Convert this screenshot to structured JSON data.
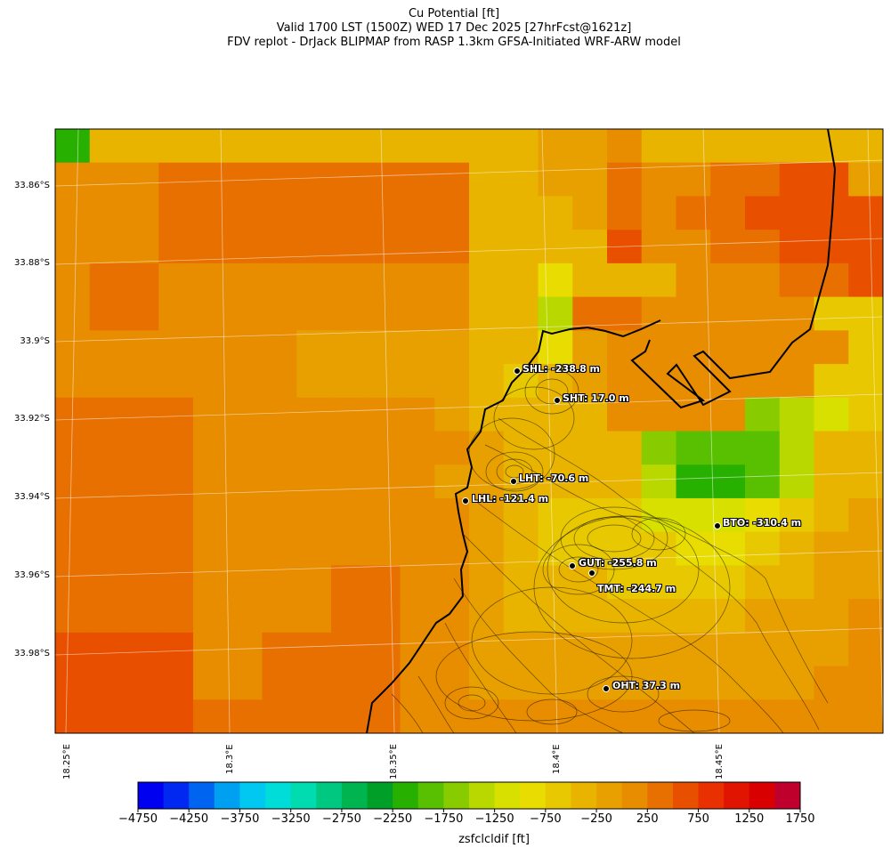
{
  "title": {
    "line1": "Cu Potential [ft]",
    "line2": "Valid 1700 LST (1500Z) WED 17 Dec 2025 [27hrFcst@1621z]",
    "line3": "FDV replot - DrJack BLIPMAP from RASP 1.3km GFSA-Initiated WRF-ARW model"
  },
  "lat_labels": [
    "33.86°S",
    "33.88°S",
    "33.9°S",
    "33.92°S",
    "33.94°S",
    "33.96°S",
    "33.98°S"
  ],
  "lon_labels": [
    "18.25°E",
    "18.3°E",
    "18.35°E",
    "18.4°E",
    "18.45°E"
  ],
  "stations": [
    {
      "name": "SHL",
      "label": "SHL: -238.8 m"
    },
    {
      "name": "SHT",
      "label": "SHT: 17.0 m"
    },
    {
      "name": "LHT",
      "label": "LHT: -70.6 m"
    },
    {
      "name": "LHL",
      "label": "LHL: -121.4 m"
    },
    {
      "name": "BTO",
      "label": "BTO: -310.4 m"
    },
    {
      "name": "GUT",
      "label": "GUT: -255.8 m"
    },
    {
      "name": "TMT",
      "label": "TMT: -244.7 m"
    },
    {
      "name": "OHT",
      "label": "OHT: 37.3 m"
    }
  ],
  "colorbar": {
    "label": "zsfclcldif [ft]",
    "ticks": [
      "−4750",
      "−4250",
      "−3750",
      "−3250",
      "−2750",
      "−2250",
      "−1750",
      "−1250",
      "−750",
      "−250",
      "250",
      "750",
      "1250",
      "1750"
    ],
    "colors": [
      "#0000f0",
      "#0028f0",
      "#0064f0",
      "#00a0f0",
      "#00c8f0",
      "#00dcd8",
      "#00dcb0",
      "#00c880",
      "#00b450",
      "#00a028",
      "#28b000",
      "#58c000",
      "#88cc00",
      "#b8d800",
      "#d8e000",
      "#e8dc00",
      "#e8c800",
      "#e8b400",
      "#e8a000",
      "#e88c00",
      "#e87000",
      "#e85000",
      "#e83000",
      "#e01400",
      "#d80000",
      "#c0002c"
    ]
  },
  "field_grid": [
    [
      10,
      17,
      17,
      17,
      17,
      17,
      17,
      17,
      17,
      17,
      17,
      17,
      17,
      17,
      18,
      18,
      19,
      17,
      17,
      17,
      17,
      17,
      17,
      17
    ],
    [
      19,
      19,
      19,
      20,
      20,
      20,
      20,
      20,
      20,
      20,
      20,
      20,
      17,
      17,
      18,
      18,
      20,
      19,
      19,
      20,
      20,
      21,
      21,
      18
    ],
    [
      19,
      19,
      19,
      20,
      20,
      20,
      20,
      20,
      20,
      20,
      20,
      20,
      17,
      17,
      17,
      18,
      20,
      19,
      20,
      20,
      21,
      21,
      21,
      21
    ],
    [
      19,
      19,
      19,
      20,
      20,
      20,
      20,
      20,
      20,
      20,
      20,
      20,
      17,
      17,
      17,
      17,
      21,
      19,
      19,
      20,
      20,
      21,
      21,
      21
    ],
    [
      19,
      20,
      20,
      19,
      19,
      19,
      19,
      19,
      19,
      19,
      19,
      19,
      17,
      17,
      15,
      17,
      17,
      17,
      19,
      19,
      19,
      20,
      20,
      21
    ],
    [
      19,
      20,
      20,
      19,
      19,
      19,
      19,
      19,
      19,
      19,
      19,
      19,
      17,
      17,
      13,
      20,
      20,
      19,
      19,
      19,
      19,
      19,
      16,
      16
    ],
    [
      19,
      19,
      19,
      19,
      19,
      19,
      19,
      18,
      18,
      18,
      18,
      18,
      17,
      17,
      15,
      18,
      19,
      19,
      19,
      19,
      19,
      19,
      19,
      16
    ],
    [
      19,
      19,
      19,
      19,
      19,
      19,
      19,
      18,
      18,
      18,
      18,
      18,
      17,
      16,
      17,
      18,
      19,
      19,
      19,
      19,
      19,
      19,
      16,
      16
    ],
    [
      20,
      20,
      20,
      20,
      19,
      19,
      19,
      19,
      19,
      19,
      19,
      18,
      17,
      17,
      17,
      17,
      19,
      19,
      19,
      19,
      12,
      13,
      14,
      16
    ],
    [
      20,
      20,
      20,
      20,
      19,
      19,
      19,
      19,
      19,
      19,
      19,
      19,
      18,
      17,
      17,
      17,
      17,
      12,
      11,
      11,
      11,
      13,
      17,
      17
    ],
    [
      20,
      20,
      20,
      20,
      19,
      19,
      19,
      19,
      19,
      19,
      19,
      18,
      18,
      17,
      17,
      17,
      17,
      13,
      10,
      10,
      11,
      13,
      17,
      17
    ],
    [
      20,
      20,
      20,
      20,
      19,
      19,
      19,
      19,
      19,
      19,
      19,
      19,
      18,
      17,
      16,
      16,
      16,
      14,
      14,
      14,
      15,
      16,
      17,
      18
    ],
    [
      20,
      20,
      20,
      20,
      19,
      19,
      19,
      19,
      19,
      19,
      19,
      19,
      18,
      17,
      16,
      16,
      16,
      16,
      15,
      15,
      16,
      17,
      18,
      18
    ],
    [
      20,
      20,
      20,
      20,
      19,
      19,
      19,
      19,
      20,
      20,
      19,
      19,
      18,
      17,
      17,
      17,
      16,
      16,
      16,
      16,
      17,
      17,
      18,
      18
    ],
    [
      20,
      20,
      20,
      20,
      19,
      19,
      19,
      19,
      20,
      20,
      19,
      19,
      18,
      17,
      17,
      17,
      17,
      17,
      17,
      17,
      18,
      18,
      18,
      19
    ],
    [
      21,
      21,
      21,
      21,
      19,
      19,
      20,
      20,
      20,
      20,
      19,
      19,
      18,
      18,
      18,
      18,
      18,
      18,
      18,
      18,
      18,
      18,
      18,
      19
    ],
    [
      21,
      21,
      21,
      21,
      19,
      19,
      20,
      20,
      20,
      20,
      19,
      19,
      18,
      18,
      18,
      18,
      18,
      18,
      18,
      18,
      18,
      18,
      19,
      19
    ],
    [
      21,
      21,
      21,
      21,
      20,
      20,
      20,
      20,
      20,
      20,
      19,
      19,
      19,
      19,
      19,
      19,
      19,
      19,
      19,
      19,
      19,
      19,
      19,
      19
    ]
  ]
}
